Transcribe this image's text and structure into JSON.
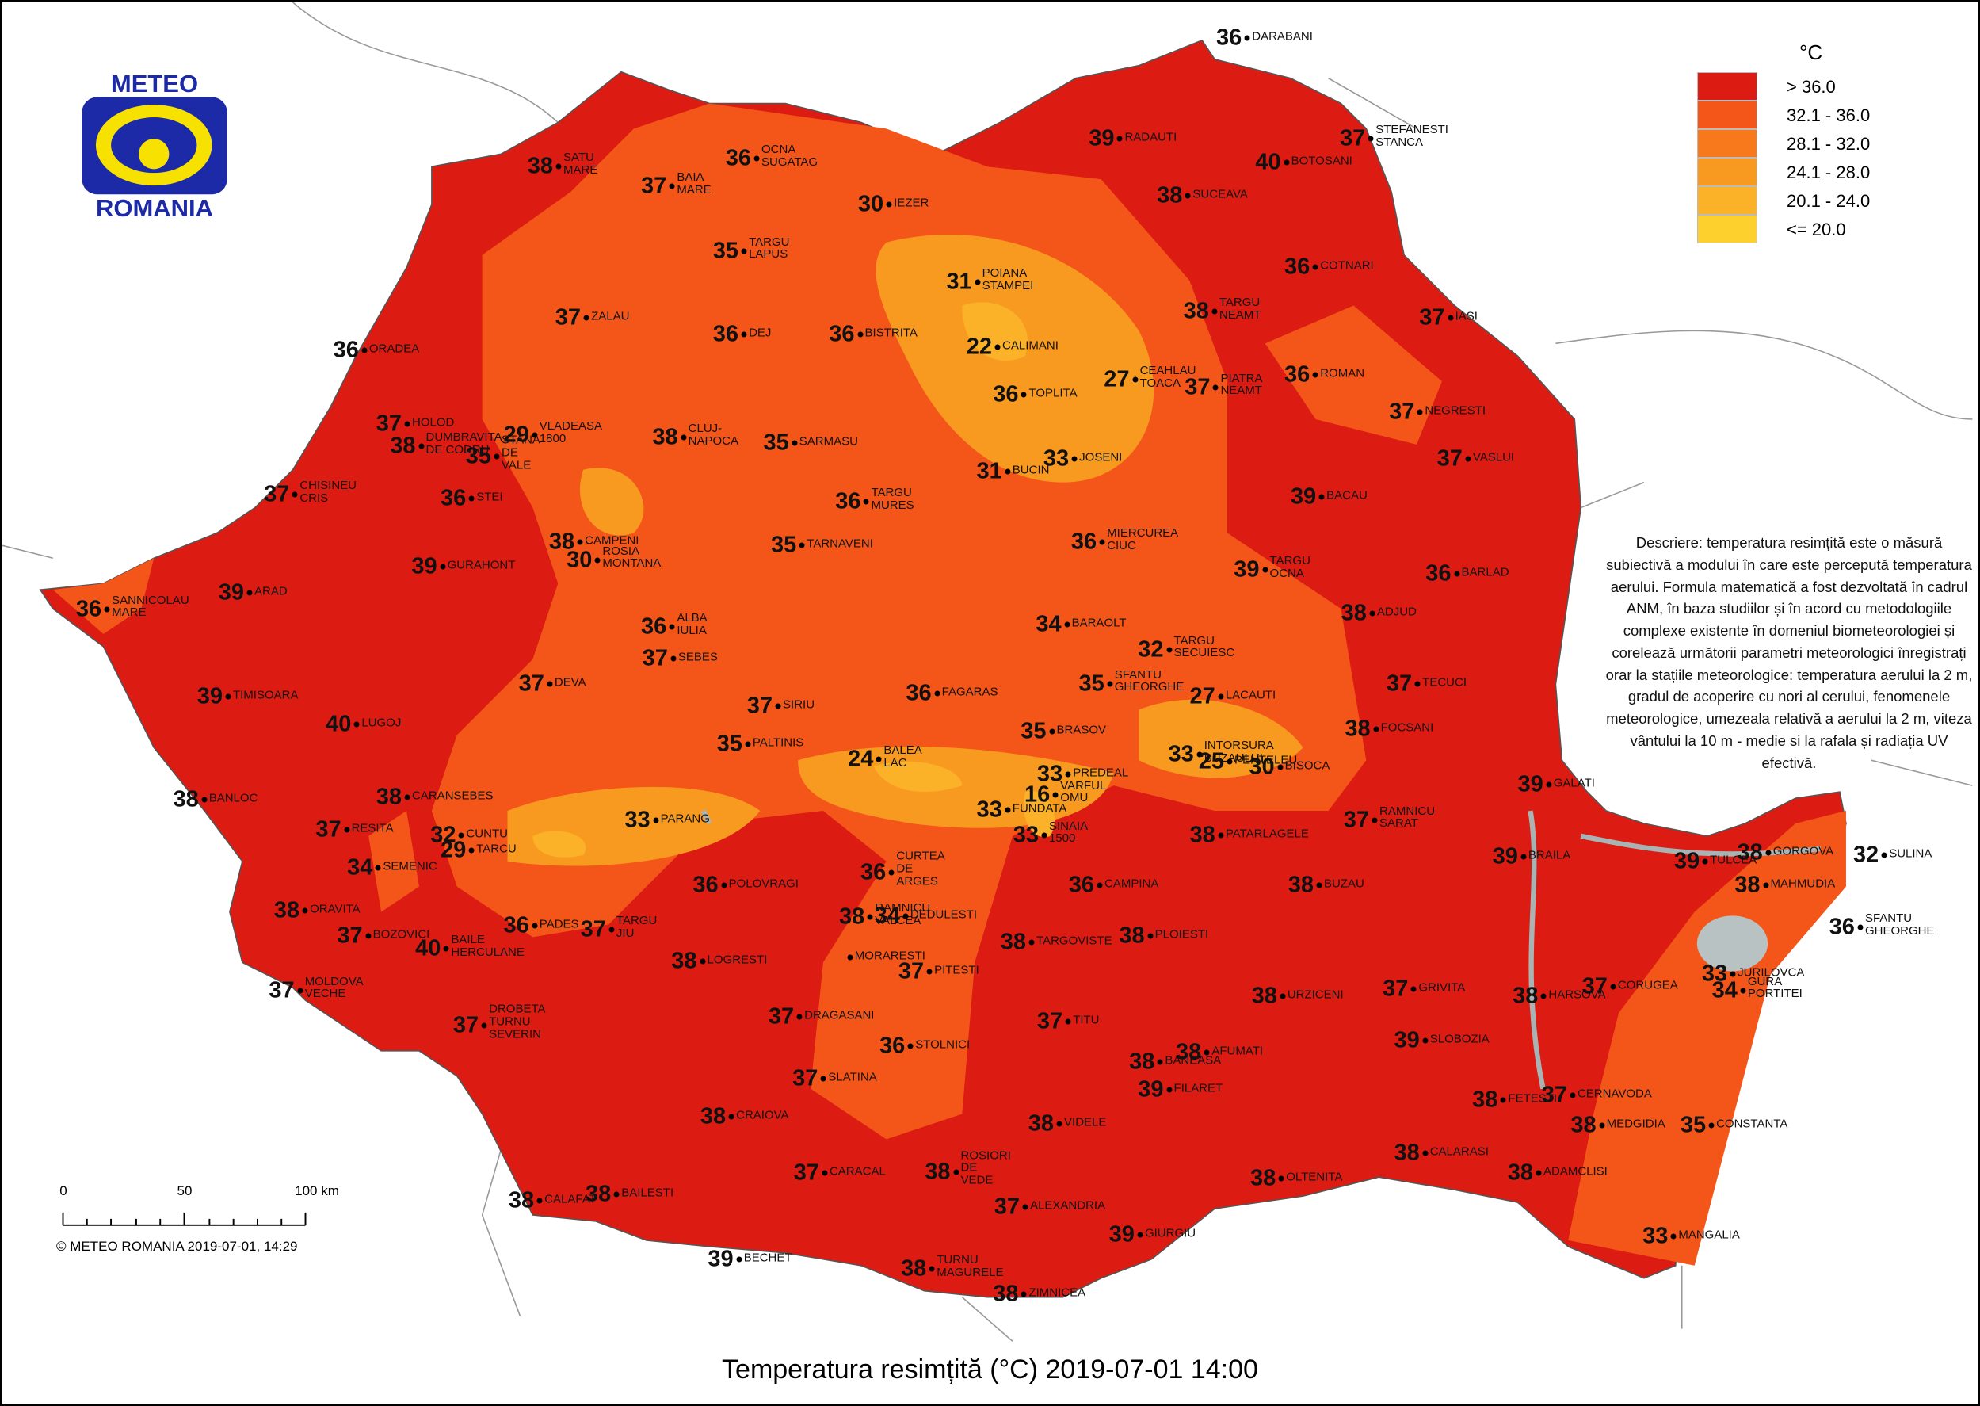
{
  "logo": {
    "top": "METEO",
    "bottom": "ROMANIA"
  },
  "title": "Temperatura resimțită (°C) 2019-07-01 14:00",
  "copyright": "© METEO ROMANIA 2019-07-01, 14:29",
  "scale": {
    "labels": [
      "0",
      "50",
      "100 km"
    ]
  },
  "legend": {
    "unit": "°C",
    "items": [
      {
        "label": "> 36.0",
        "color": "#dc1c13"
      },
      {
        "label": "32.1 - 36.0",
        "color": "#f4561a"
      },
      {
        "label": "28.1 - 32.0",
        "color": "#f7791c"
      },
      {
        "label": "24.1 - 28.0",
        "color": "#f99a20"
      },
      {
        "label": "20.1 - 24.0",
        "color": "#fbb128"
      },
      {
        "label": "<= 20.0",
        "color": "#fdd02e"
      }
    ]
  },
  "description": "Descriere: temperatura resimțită este o măsură subiectivă a modului în care este percepută temperatura aerului. Formula matematică a fost dezvoltată în cadrul ANM, în baza studiilor și în acord cu metodologiile complexe existente în domeniul biometeorologiei și corelează următorii parametri meteorologici înregistrați orar la stațiile meteorologice: temperatura aerului la 2 m, gradul de acoperire cu nori al cerului, fenomenele meteorologice, umezeala relativă a aerului la 2 m, viteza vântului la 10 m - medie si la rafala și radiația UV efectivă.",
  "stations": [
    {
      "name": "DARABANI",
      "value": 36
    },
    {
      "name": "STEFANESTI STANCA",
      "value": 37
    },
    {
      "name": "RADAUTI",
      "value": 39
    },
    {
      "name": "BOTOSANI",
      "value": 40
    },
    {
      "name": "SUCEAVA",
      "value": 38
    },
    {
      "name": "OCNA SUGATAG",
      "value": 36
    },
    {
      "name": "SATU MARE",
      "value": 38
    },
    {
      "name": "BAIA MARE",
      "value": 37
    },
    {
      "name": "IEZER",
      "value": 30
    },
    {
      "name": "TARGU LAPUS",
      "value": 35
    },
    {
      "name": "POIANA STAMPEI",
      "value": 31
    },
    {
      "name": "COTNARI",
      "value": 36
    },
    {
      "name": "TARGU NEAMT",
      "value": 38
    },
    {
      "name": "IASI",
      "value": 37
    },
    {
      "name": "ZALAU",
      "value": 37
    },
    {
      "name": "DEJ",
      "value": 36
    },
    {
      "name": "BISTRITA",
      "value": 36
    },
    {
      "name": "CALIMANI",
      "value": 22
    },
    {
      "name": "ORADEA",
      "value": 36
    },
    {
      "name": "CEAHLAU TOACA",
      "value": 27
    },
    {
      "name": "PIATRA NEAMT",
      "value": 37
    },
    {
      "name": "ROMAN",
      "value": 36
    },
    {
      "name": "TOPLITA",
      "value": 36
    },
    {
      "name": "NEGRESTI",
      "value": 37
    },
    {
      "name": "VLADEASA 1800",
      "value": 29
    },
    {
      "name": "HOLOD",
      "value": 37
    },
    {
      "name": "DUMBRAVITA DE CODRU",
      "value": 38
    },
    {
      "name": "STANA DE VALE",
      "value": 35
    },
    {
      "name": "CLUJ-NAPOCA",
      "value": 38
    },
    {
      "name": "SARMASU",
      "value": 35
    },
    {
      "name": "BUCIN",
      "value": 31
    },
    {
      "name": "JOSENI",
      "value": 33
    },
    {
      "name": "VASLUI",
      "value": 37
    },
    {
      "name": "CHISINEU CRIS",
      "value": 37
    },
    {
      "name": "STEI",
      "value": 36
    },
    {
      "name": "TARGU MURES",
      "value": 36
    },
    {
      "name": "BACAU",
      "value": 39
    },
    {
      "name": "CAMPENI",
      "value": 38
    },
    {
      "name": "ROSIA MONTANA",
      "value": 30
    },
    {
      "name": "TARNAVENI",
      "value": 35
    },
    {
      "name": "MIERCUREA CIUC",
      "value": 36
    },
    {
      "name": "TARGU OCNA",
      "value": 39
    },
    {
      "name": "GURAHONT",
      "value": 39
    },
    {
      "name": "SANNICOLAU MARE",
      "value": 36
    },
    {
      "name": "ARAD",
      "value": 39
    },
    {
      "name": "BARLAD",
      "value": 36
    },
    {
      "name": "ADJUD",
      "value": 38
    },
    {
      "name": "BARAOLT",
      "value": 34
    },
    {
      "name": "ALBA IULIA",
      "value": 36
    },
    {
      "name": "SEBES",
      "value": 37
    },
    {
      "name": "TARGU SECUIESC",
      "value": 32
    },
    {
      "name": "DEVA",
      "value": 37
    },
    {
      "name": "SFANTU GHEORGHE",
      "value": 35
    },
    {
      "name": "TIMISOARA",
      "value": 39
    },
    {
      "name": "TECUCI",
      "value": 37
    },
    {
      "name": "FAGARAS",
      "value": 36
    },
    {
      "name": "SIRIU",
      "value": 37
    },
    {
      "name": "LACAUTI",
      "value": 27
    },
    {
      "name": "LUGOJ",
      "value": 40
    },
    {
      "name": "PALTINIS",
      "value": 35
    },
    {
      "name": "BRASOV",
      "value": 35
    },
    {
      "name": "FOCSANI",
      "value": 38
    },
    {
      "name": "BALEA LAC",
      "value": 24
    },
    {
      "name": "INTORSURA BUZAULUI",
      "value": 33
    },
    {
      "name": "PENTELEU",
      "value": 25
    },
    {
      "name": "BISOCA",
      "value": 30
    },
    {
      "name": "VARFUL OMU",
      "value": 16
    },
    {
      "name": "PREDEAL",
      "value": 33
    },
    {
      "name": "FUNDATA",
      "value": 33
    },
    {
      "name": "SINAIA 1500",
      "value": 33
    },
    {
      "name": "GALATI",
      "value": 39
    },
    {
      "name": "BANLOC",
      "value": 38
    },
    {
      "name": "CARANSEBES",
      "value": 38
    },
    {
      "name": "RESITA",
      "value": 37
    },
    {
      "name": "CUNTU",
      "value": 32
    },
    {
      "name": "TARCU",
      "value": 29
    },
    {
      "name": "PARANG",
      "value": 33
    },
    {
      "name": "RAMNICU SARAT",
      "value": 37
    },
    {
      "name": "PATARLAGELE",
      "value": 38
    },
    {
      "name": "SEMENIC",
      "value": 34
    },
    {
      "name": "BRAILA",
      "value": 39
    },
    {
      "name": "TULCEA",
      "value": 39
    },
    {
      "name": "GORGOVA",
      "value": 38
    },
    {
      "name": "SULINA",
      "value": 32
    },
    {
      "name": "MAHMUDIA",
      "value": 38
    },
    {
      "name": "POLOVRAGI",
      "value": 36
    },
    {
      "name": "CURTEA DE ARGES",
      "value": 36
    },
    {
      "name": "CAMPINA",
      "value": 36
    },
    {
      "name": "BUZAU",
      "value": 38
    },
    {
      "name": "ORAVITA",
      "value": 38
    },
    {
      "name": "PADES",
      "value": 36
    },
    {
      "name": "TARGU JIU",
      "value": 37
    },
    {
      "name": "RAMNICU VALCEA",
      "value": 38
    },
    {
      "name": "DEDULESTI",
      "value": 34
    },
    {
      "name": "MORARESTI"
    },
    {
      "name": "BOZOVICI",
      "value": 37
    },
    {
      "name": "BAILE HERCULANE",
      "value": 40
    },
    {
      "name": "TARGOVISTE",
      "value": 38
    },
    {
      "name": "PLOIESTI",
      "value": 38
    },
    {
      "name": "SFANTU GHEORGHE",
      "value": 36
    },
    {
      "name": "LOGRESTI",
      "value": 38
    },
    {
      "name": "PITESTI",
      "value": 37
    },
    {
      "name": "JURILOVCA",
      "value": 33
    },
    {
      "name": "GURA PORTITEI",
      "value": 34
    },
    {
      "name": "CORUGEA",
      "value": 37
    },
    {
      "name": "HARSOVA",
      "value": 38
    },
    {
      "name": "GRIVITA",
      "value": 37
    },
    {
      "name": "URZICENI",
      "value": 38
    },
    {
      "name": "MOLDOVA VECHE",
      "value": 37
    },
    {
      "name": "DROBETA TURNU SEVERIN",
      "value": 37
    },
    {
      "name": "DRAGASANI",
      "value": 37
    },
    {
      "name": "TITU",
      "value": 37
    },
    {
      "name": "SLOBOZIA",
      "value": 39
    },
    {
      "name": "STOLNICI",
      "value": 36
    },
    {
      "name": "BANEASA",
      "value": 38
    },
    {
      "name": "AFUMATI",
      "value": 38
    },
    {
      "name": "FILARET",
      "value": 39
    },
    {
      "name": "SLATINA",
      "value": 37
    },
    {
      "name": "FETESTI",
      "value": 38
    },
    {
      "name": "CERNAVODA",
      "value": 37
    },
    {
      "name": "CRAIOVA",
      "value": 38
    },
    {
      "name": "VIDELE",
      "value": 38
    },
    {
      "name": "MEDGIDIA",
      "value": 38
    },
    {
      "name": "CONSTANTA",
      "value": 35
    },
    {
      "name": "ROSIORI DE VEDE",
      "value": 38
    },
    {
      "name": "CALARASI",
      "value": 38
    },
    {
      "name": "ADAMCLISI",
      "value": 38
    },
    {
      "name": "CARACAL",
      "value": 37
    },
    {
      "name": "OLTENITA",
      "value": 38
    },
    {
      "name": "ALEXANDRIA",
      "value": 37
    },
    {
      "name": "CALAFAT",
      "value": 38
    },
    {
      "name": "BAILESTI",
      "value": 38
    },
    {
      "name": "GIURGIU",
      "value": 39
    },
    {
      "name": "MANGALIA",
      "value": 33
    },
    {
      "name": "BECHET",
      "value": 39
    },
    {
      "name": "TURNU MAGURELE",
      "value": 38
    },
    {
      "name": "ZIMNICEA",
      "value": 38
    }
  ]
}
